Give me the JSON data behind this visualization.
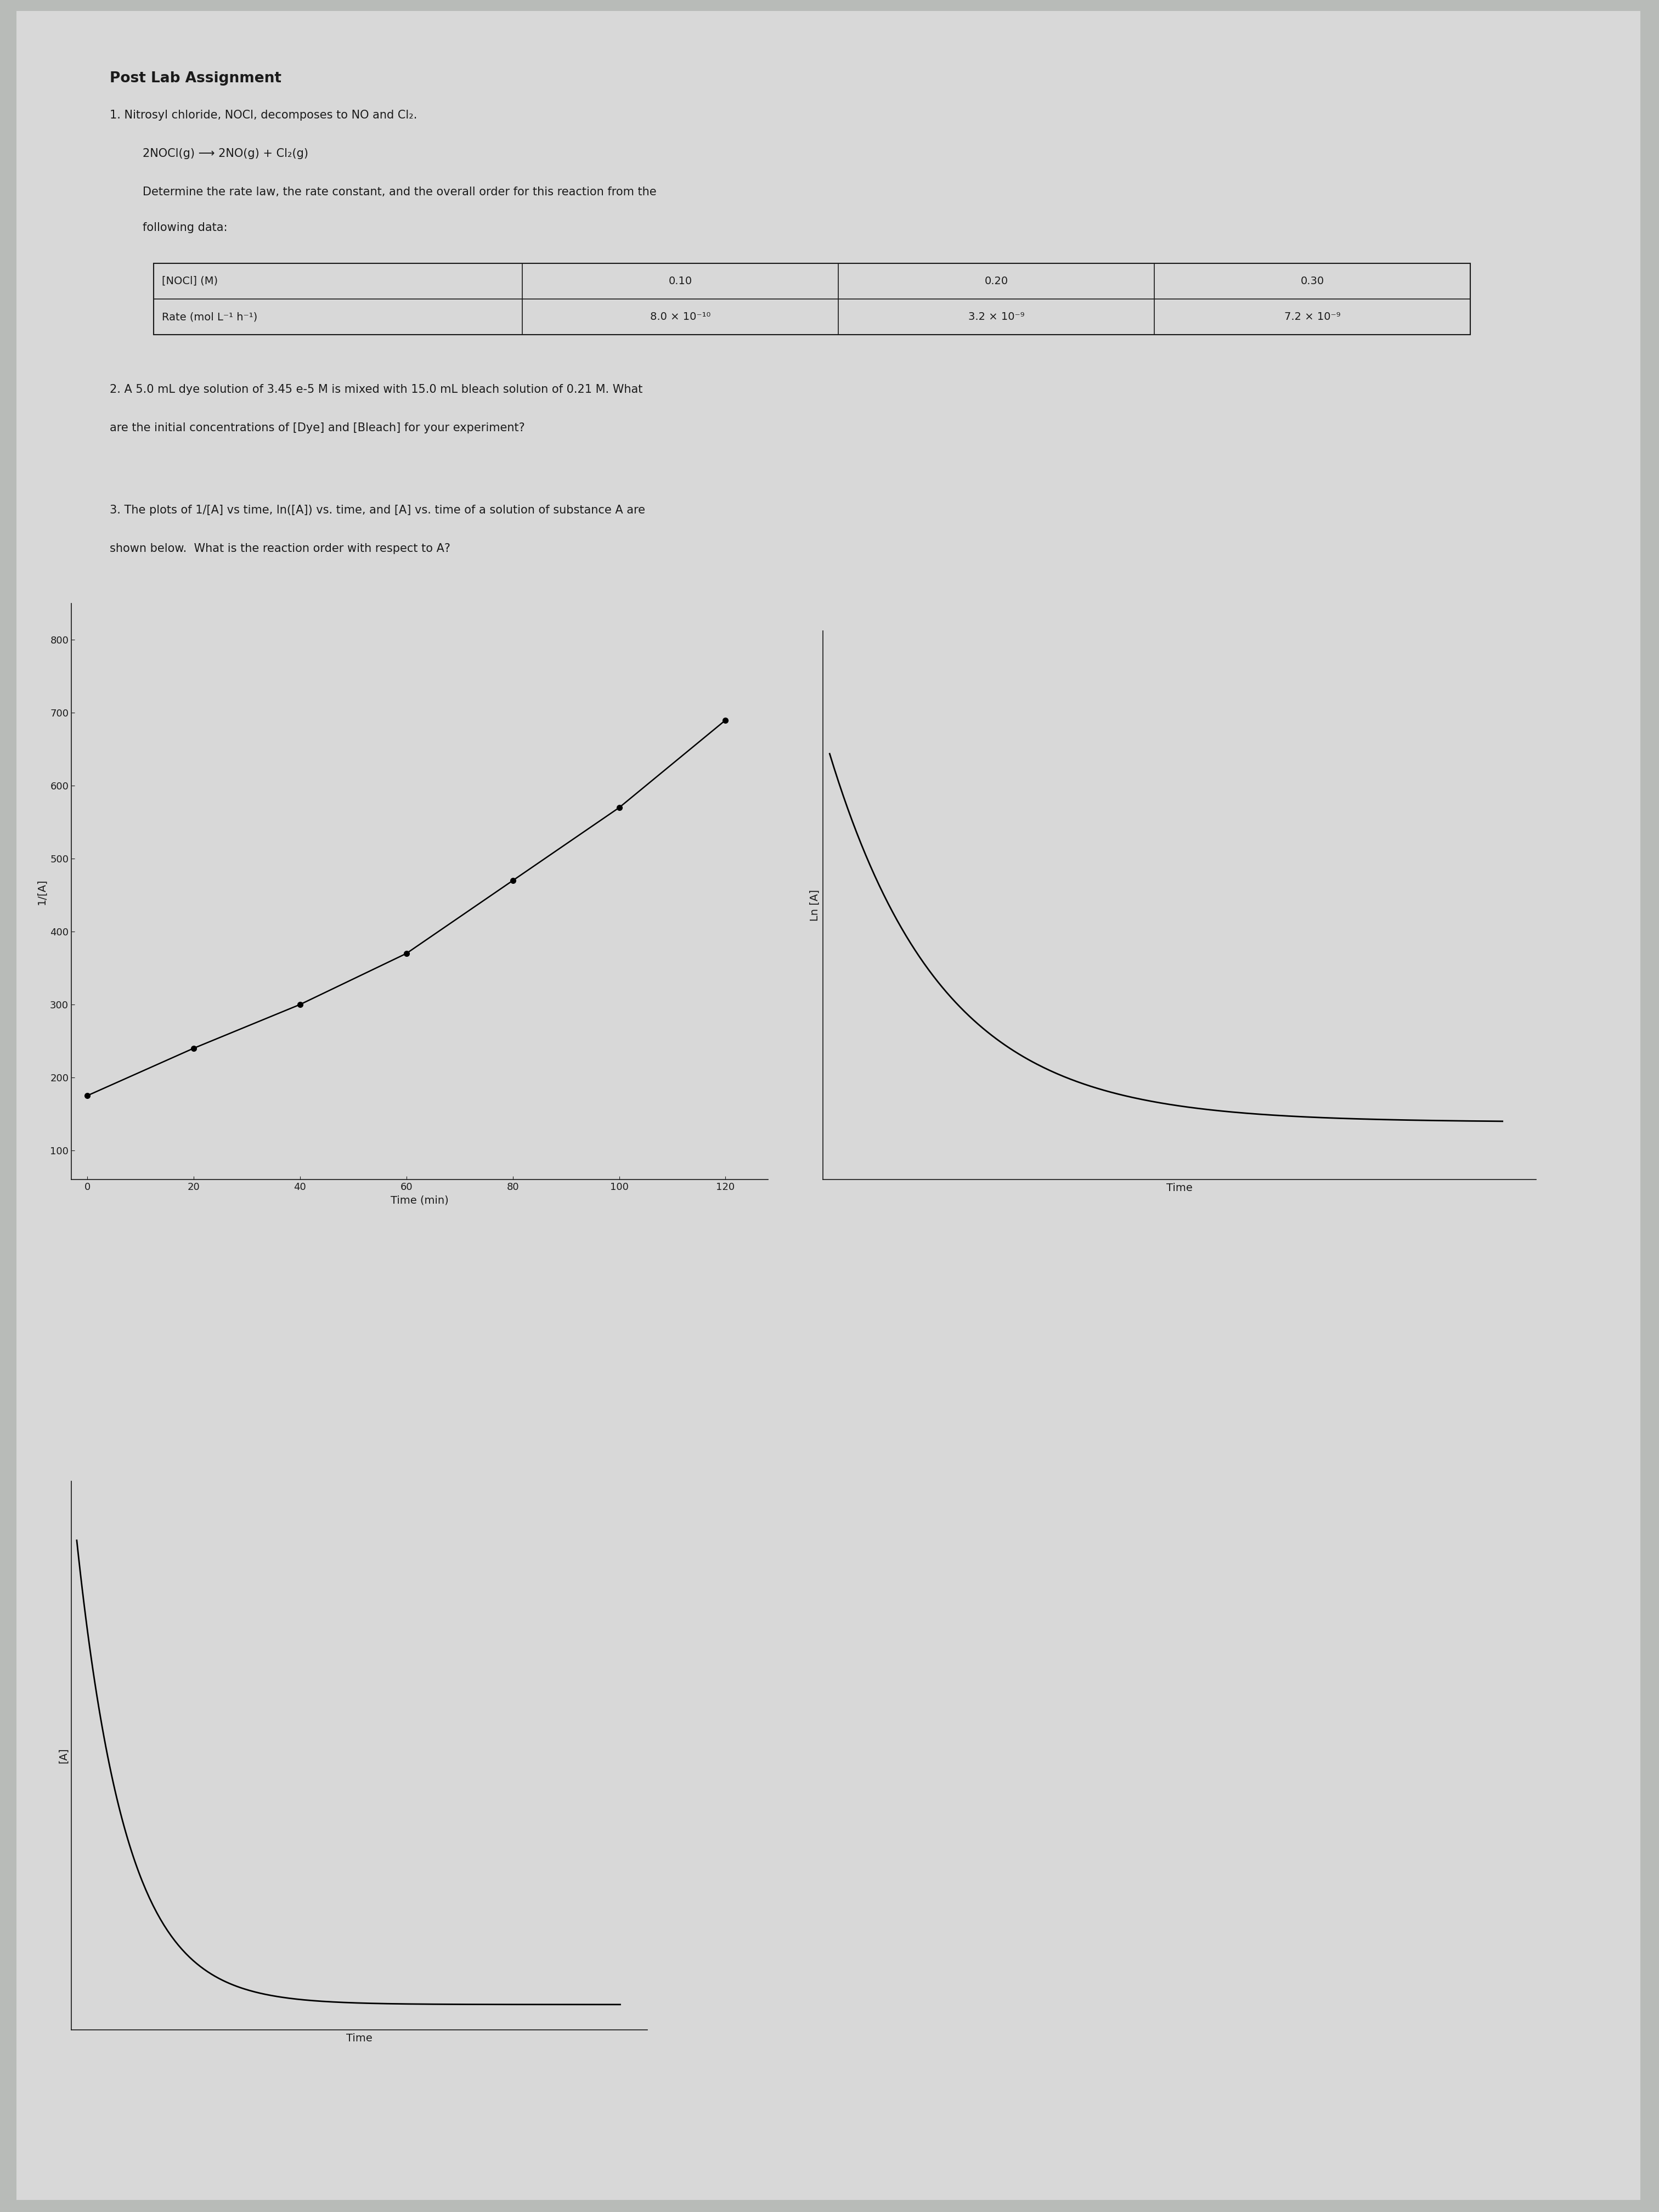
{
  "bg_color": "#b8bbb8",
  "paper_color": "#dcdcdc",
  "title": "Post Lab Assignment",
  "q1_line1": "1. Nitrosyl chloride, NOCl, decomposes to NO and Cl₂.",
  "q1_rxn": "   2NOCl(g) ⟶ 2NO(g) + Cl₂(g)",
  "q1_line2": "   Determine the rate law, the rate constant, and the overall order for this reaction from the",
  "q1_line3": "   following data:",
  "table_col1_h": "[NOCl] (M)",
  "table_col2_h": "0.10",
  "table_col3_h": "0.20",
  "table_col4_h": "0.30",
  "table_col1_r": "Rate (mol L⁻¹ h⁻¹)",
  "table_col2_r": "8.0 × 10⁻¹⁰",
  "table_col3_r": "3.2 × 10⁻⁹",
  "table_col4_r": "7.2 × 10⁻⁹",
  "q2a": "2. A 5.0 mL dye solution of 3.45 e-5 M is mixed with 15.0 mL bleach solution of 0.21 M. What",
  "q2b": "are the initial concentrations of [Dye] and [Bleach] for your experiment?",
  "q3a": "3. The plots of 1/[A] vs time, ln([A]) vs. time, and [A] vs. time of a solution of substance A are",
  "q3b": "shown below.  What is the reaction order with respect to A?",
  "plot1_ylabel": "1/[A]",
  "plot1_xlabel": "Time (min)",
  "plot1_yticks": [
    100,
    200,
    300,
    400,
    500,
    600,
    700,
    800
  ],
  "plot1_xticks": [
    0,
    20,
    40,
    60,
    80,
    100,
    120
  ],
  "plot1_data_x": [
    0,
    20,
    40,
    60,
    80,
    100,
    120
  ],
  "plot1_data_y": [
    175,
    240,
    300,
    370,
    470,
    570,
    690
  ],
  "plot2_ylabel": "Ln [A]",
  "plot2_xlabel": "Time",
  "plot3_ylabel": "[A]",
  "plot3_xlabel": "Time",
  "text_color": "#1a1a1a",
  "font_size_body": 15,
  "font_size_title": 17
}
